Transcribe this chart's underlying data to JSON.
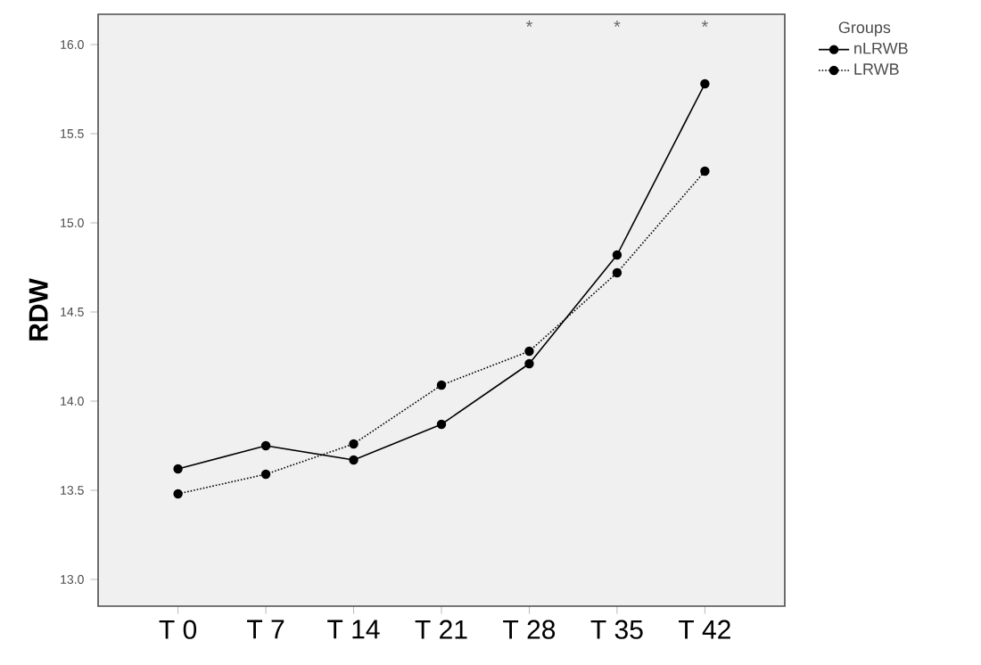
{
  "chart_data": {
    "type": "line",
    "ylabel": "RDW",
    "legend_title": "Groups",
    "categories": [
      "T 0",
      "T 7",
      "T 14",
      "T 21",
      "T 28",
      "T 35",
      "T 42"
    ],
    "series": [
      {
        "name": "nLRWB",
        "color": "#000000",
        "line_style": "solid",
        "values": [
          13.62,
          13.75,
          13.67,
          13.87,
          14.21,
          14.82,
          15.78
        ]
      },
      {
        "name": "LRWB",
        "color": "#000000",
        "line_style": "dotted",
        "values": [
          13.48,
          13.59,
          13.76,
          14.09,
          14.28,
          14.72,
          15.29
        ]
      }
    ],
    "ylim": [
      12.85,
      16.17
    ],
    "yticks": [
      {
        "value": 13,
        "label": "13.0"
      },
      {
        "value": 13.5,
        "label": "13.5"
      },
      {
        "value": 14,
        "label": "14.0"
      },
      {
        "value": 14.5,
        "label": "14.5"
      },
      {
        "value": 15,
        "label": "15.0"
      },
      {
        "value": 15.5,
        "label": "15.5"
      },
      {
        "value": 16,
        "label": "16.0"
      }
    ],
    "marker": "circle",
    "legend": "top right",
    "annotations": [
      "*",
      "*",
      "*"
    ]
  }
}
